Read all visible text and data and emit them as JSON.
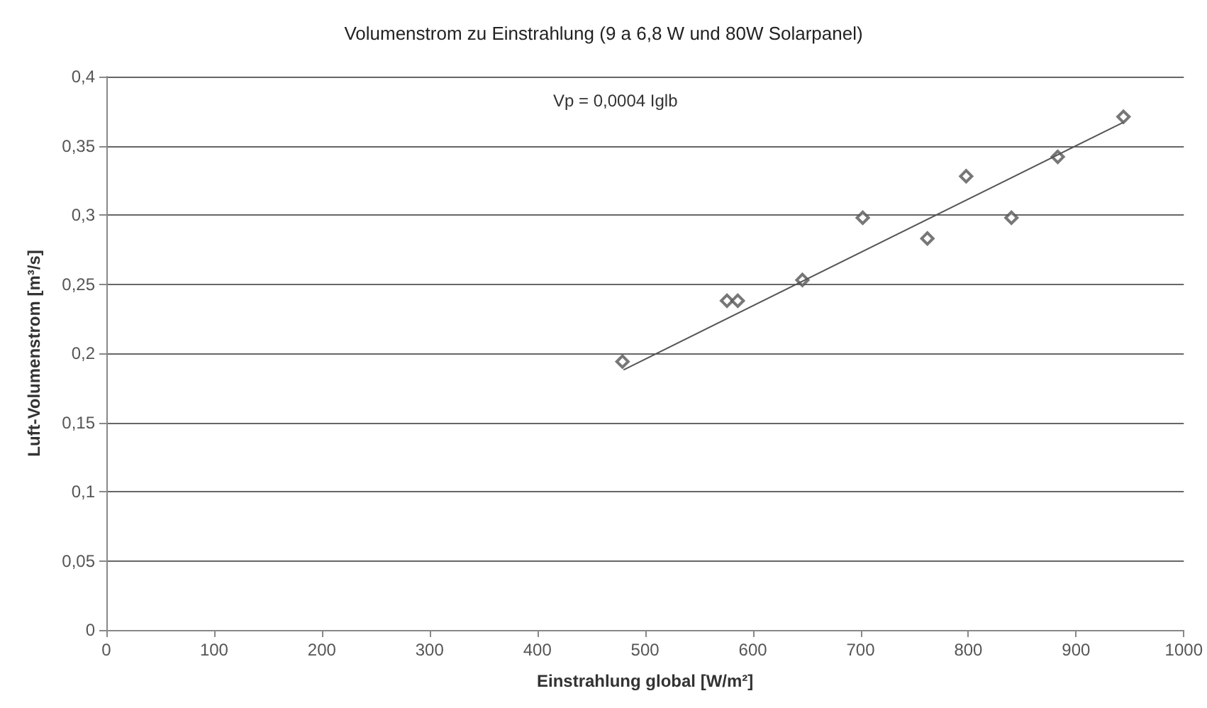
{
  "chart_data": {
    "type": "scatter",
    "title": "Volumenstrom zu Einstrahlung (9 a 6,8 W und 80W Solarpanel)",
    "xlabel": "Einstrahlung global [W/m²]",
    "ylabel": "Luft-Volumenstrom [m³/s]",
    "annotations": [
      "Vp = 0,0004 Iglb"
    ],
    "series": [
      {
        "color": "#555555",
        "marker": "diamond",
        "x": [
          479,
          576,
          586,
          646,
          702,
          762,
          798,
          840,
          883,
          944
        ],
        "values": [
          0.194,
          0.238,
          0.238,
          0.253,
          0.298,
          0.283,
          0.328,
          0.298,
          0.342,
          0.371
        ]
      },
      {
        "type": "line",
        "color": "#555555",
        "marker": "none",
        "line_style": "solid",
        "x": [
          480,
          944
        ],
        "values": [
          0.188,
          0.367
        ]
      }
    ],
    "xlim": [
      0,
      1000
    ],
    "xticks": [
      0,
      100,
      200,
      300,
      400,
      500,
      600,
      700,
      800,
      900,
      1000
    ],
    "ylim": [
      0,
      0.4
    ],
    "yticks": [
      {
        "value": 0,
        "label": "0"
      },
      {
        "value": 0.05,
        "label": "0,05"
      },
      {
        "value": 0.1,
        "label": "0,1"
      },
      {
        "value": 0.15,
        "label": "0,15"
      },
      {
        "value": 0.2,
        "label": "0,2"
      },
      {
        "value": 0.25,
        "label": "0,25"
      },
      {
        "value": 0.3,
        "label": "0,3"
      },
      {
        "value": 0.35,
        "label": "0,35"
      },
      {
        "value": 0.4,
        "label": "0,4"
      }
    ],
    "grid": "y"
  }
}
